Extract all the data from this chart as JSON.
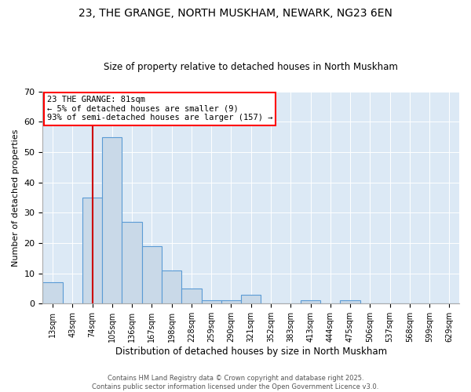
{
  "title1": "23, THE GRANGE, NORTH MUSKHAM, NEWARK, NG23 6EN",
  "title2": "Size of property relative to detached houses in North Muskham",
  "xlabel": "Distribution of detached houses by size in North Muskham",
  "ylabel": "Number of detached properties",
  "bar_labels": [
    "13sqm",
    "43sqm",
    "74sqm",
    "105sqm",
    "136sqm",
    "167sqm",
    "198sqm",
    "228sqm",
    "259sqm",
    "290sqm",
    "321sqm",
    "352sqm",
    "383sqm",
    "413sqm",
    "444sqm",
    "475sqm",
    "506sqm",
    "537sqm",
    "568sqm",
    "599sqm",
    "629sqm"
  ],
  "bar_values": [
    7,
    0,
    35,
    55,
    27,
    19,
    11,
    5,
    1,
    1,
    3,
    0,
    0,
    1,
    0,
    1,
    0,
    0,
    0,
    0,
    0
  ],
  "bar_color": "#c9d9e8",
  "bar_edge_color": "#5b9bd5",
  "vline_x_idx": 2,
  "vline_color": "#cc0000",
  "annotation_text": "23 THE GRANGE: 81sqm\n← 5% of detached houses are smaller (9)\n93% of semi-detached houses are larger (157) →",
  "ylim": [
    0,
    70
  ],
  "yticks": [
    0,
    10,
    20,
    30,
    40,
    50,
    60,
    70
  ],
  "bg_color": "#dce9f5",
  "footer1": "Contains HM Land Registry data © Crown copyright and database right 2025.",
  "footer2": "Contains public sector information licensed under the Open Government Licence v3.0."
}
